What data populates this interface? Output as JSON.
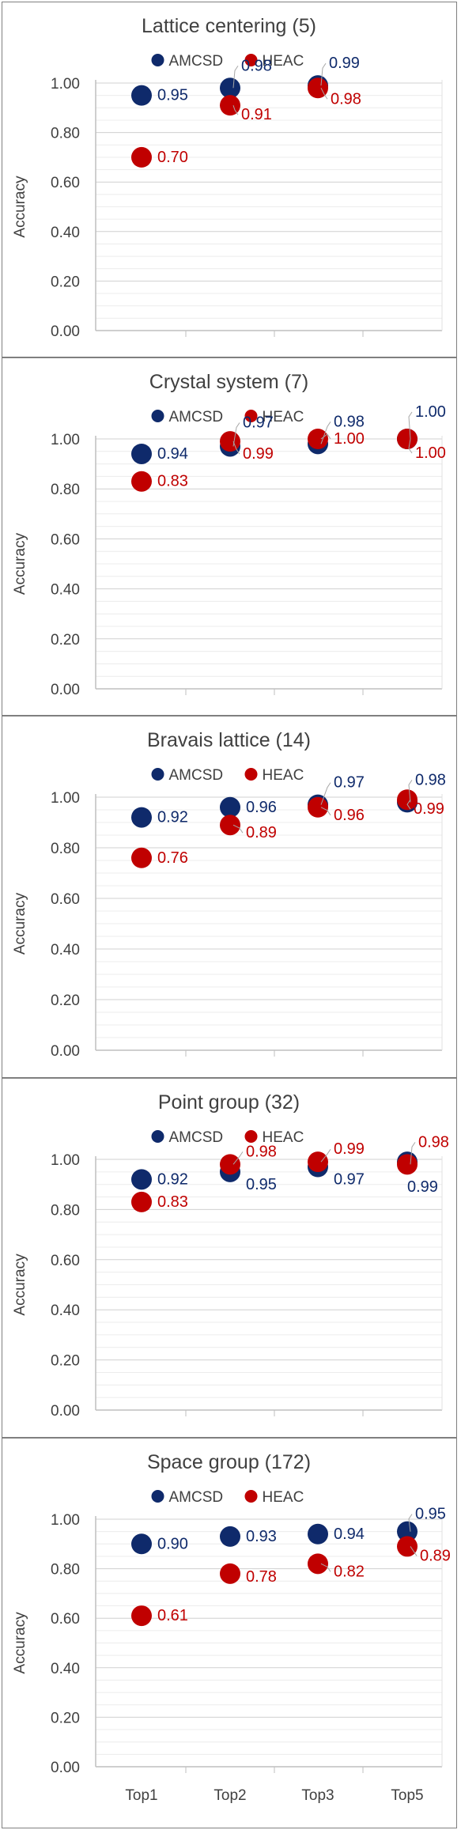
{
  "chart_data": [
    {
      "type": "scatter",
      "title": "Lattice centering (5)",
      "ylabel": "Accuracy",
      "xlabel": "",
      "ylim": [
        0,
        1
      ],
      "yticks": [
        "0.00",
        "0.20",
        "0.40",
        "0.60",
        "0.80",
        "1.00"
      ],
      "categories": [
        "Top1",
        "Top2",
        "Top3",
        "Top5"
      ],
      "show_xticks": false,
      "grid": true,
      "legend": "top-center",
      "series": [
        {
          "name": "AMCSD",
          "color": "#0f2a6b",
          "values": [
            0.95,
            0.98,
            0.99,
            null
          ],
          "labels": [
            "0.95",
            "0.98",
            "0.99",
            ""
          ]
        },
        {
          "name": "HEAC",
          "color": "#c00000",
          "values": [
            0.7,
            0.91,
            0.98,
            null
          ],
          "labels": [
            "0.70",
            "0.91",
            "0.98",
            ""
          ]
        }
      ]
    },
    {
      "type": "scatter",
      "title": "Crystal system (7)",
      "ylabel": "Accuracy",
      "xlabel": "",
      "ylim": [
        0,
        1
      ],
      "yticks": [
        "0.00",
        "0.20",
        "0.40",
        "0.60",
        "0.80",
        "1.00"
      ],
      "categories": [
        "Top1",
        "Top2",
        "Top3",
        "Top5"
      ],
      "show_xticks": false,
      "grid": true,
      "legend": "top-center",
      "series": [
        {
          "name": "AMCSD",
          "color": "#0f2a6b",
          "values": [
            0.94,
            0.97,
            0.98,
            1.0
          ],
          "labels": [
            "0.94",
            "0.97",
            "0.98",
            "1.00"
          ]
        },
        {
          "name": "HEAC",
          "color": "#c00000",
          "values": [
            0.83,
            0.99,
            1.0,
            1.0
          ],
          "labels": [
            "0.83",
            "0.99",
            "1.00",
            "1.00"
          ]
        }
      ]
    },
    {
      "type": "scatter",
      "title": "Bravais lattice (14)",
      "ylabel": "Accuracy",
      "xlabel": "",
      "ylim": [
        0,
        1
      ],
      "yticks": [
        "0.00",
        "0.20",
        "0.40",
        "0.60",
        "0.80",
        "1.00"
      ],
      "categories": [
        "Top1",
        "Top2",
        "Top3",
        "Top5"
      ],
      "show_xticks": false,
      "grid": true,
      "legend": "top-center",
      "series": [
        {
          "name": "AMCSD",
          "color": "#0f2a6b",
          "values": [
            0.92,
            0.96,
            0.97,
            0.98
          ],
          "labels": [
            "0.92",
            "0.96",
            "0.97",
            "0.98"
          ]
        },
        {
          "name": "HEAC",
          "color": "#c00000",
          "values": [
            0.76,
            0.89,
            0.96,
            0.99
          ],
          "labels": [
            "0.76",
            "0.89",
            "0.96",
            "0.99"
          ]
        }
      ]
    },
    {
      "type": "scatter",
      "title": "Point group (32)",
      "ylabel": "Accuracy",
      "xlabel": "",
      "ylim": [
        0,
        1
      ],
      "yticks": [
        "0.00",
        "0.20",
        "0.40",
        "0.60",
        "0.80",
        "1.00"
      ],
      "categories": [
        "Top1",
        "Top2",
        "Top3",
        "Top5"
      ],
      "show_xticks": false,
      "grid": true,
      "legend": "top-center",
      "series": [
        {
          "name": "AMCSD",
          "color": "#0f2a6b",
          "values": [
            0.92,
            0.95,
            0.97,
            0.99
          ],
          "labels": [
            "0.92",
            "0.95",
            "0.97",
            "0.99"
          ]
        },
        {
          "name": "HEAC",
          "color": "#c00000",
          "values": [
            0.83,
            0.98,
            0.99,
            0.98
          ],
          "labels": [
            "0.83",
            "0.98",
            "0.99",
            "0.98"
          ]
        }
      ]
    },
    {
      "type": "scatter",
      "title": "Space group (172)",
      "ylabel": "Accuracy",
      "xlabel": "",
      "ylim": [
        0,
        1
      ],
      "yticks": [
        "0.00",
        "0.20",
        "0.40",
        "0.60",
        "0.80",
        "1.00"
      ],
      "categories": [
        "Top1",
        "Top2",
        "Top3",
        "Top5"
      ],
      "show_xticks": true,
      "grid": true,
      "legend": "top-center",
      "series": [
        {
          "name": "AMCSD",
          "color": "#0f2a6b",
          "values": [
            0.9,
            0.93,
            0.94,
            0.95
          ],
          "labels": [
            "0.90",
            "0.93",
            "0.94",
            "0.95"
          ]
        },
        {
          "name": "HEAC",
          "color": "#c00000",
          "values": [
            0.61,
            0.78,
            0.82,
            0.89
          ],
          "labels": [
            "0.61",
            "0.78",
            "0.82",
            "0.89"
          ]
        }
      ]
    }
  ]
}
